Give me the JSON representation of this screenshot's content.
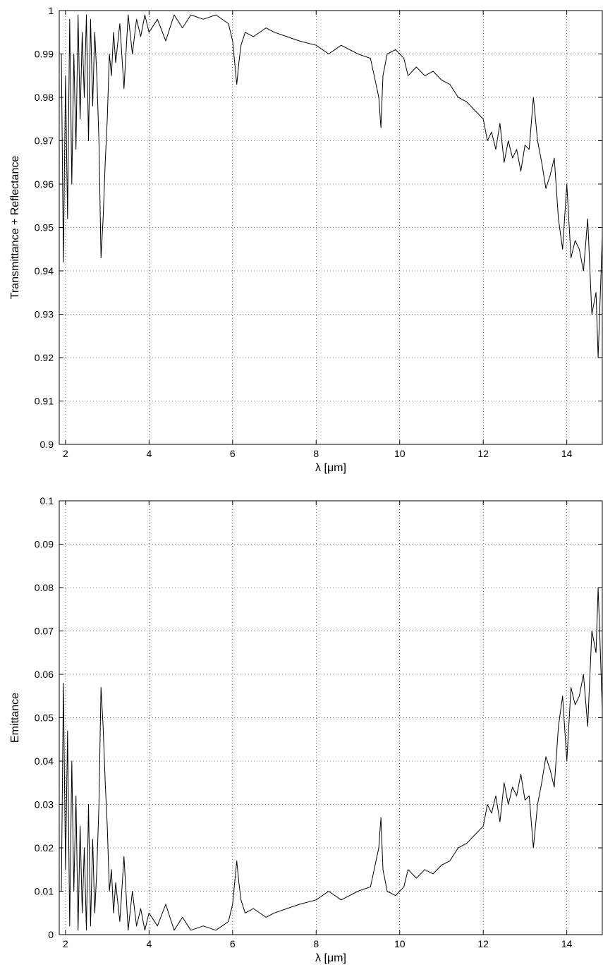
{
  "chart_data": [
    {
      "type": "line",
      "title": "",
      "xlabel": "λ [μm]",
      "ylabel": "Transmittance + Reflectance",
      "xlim": [
        1.85,
        14.85
      ],
      "ylim": [
        0.9,
        1.0
      ],
      "xticks": [
        2,
        4,
        6,
        8,
        10,
        12,
        14
      ],
      "yticks": [
        0.9,
        0.91,
        0.92,
        0.93,
        0.94,
        0.95,
        0.96,
        0.97,
        0.98,
        0.99,
        1.0
      ],
      "xtick_labels": [
        "2",
        "4",
        "6",
        "8",
        "10",
        "12",
        "14"
      ],
      "ytick_labels": [
        "0.9",
        "0.91",
        "0.92",
        "0.93",
        "0.94",
        "0.95",
        "0.96",
        "0.97",
        "0.98",
        "0.99",
        "1"
      ],
      "grid": true,
      "series": [
        {
          "x": [
            1.9,
            1.95,
            2.0,
            2.05,
            2.1,
            2.15,
            2.2,
            2.25,
            2.3,
            2.35,
            2.4,
            2.45,
            2.5,
            2.55,
            2.6,
            2.65,
            2.7,
            2.75,
            2.8,
            2.85,
            2.9,
            2.95,
            3.0,
            3.05,
            3.1,
            3.15,
            3.2,
            3.3,
            3.4,
            3.5,
            3.6,
            3.7,
            3.8,
            3.9,
            4.0,
            4.2,
            4.4,
            4.6,
            4.8,
            5.0,
            5.3,
            5.6,
            5.9,
            6.0,
            6.1,
            6.15,
            6.2,
            6.3,
            6.5,
            6.8,
            7.0,
            7.3,
            7.6,
            8.0,
            8.3,
            8.6,
            9.0,
            9.3,
            9.5,
            9.55,
            9.6,
            9.7,
            9.9,
            10.0,
            10.1,
            10.2,
            10.4,
            10.6,
            10.8,
            11.0,
            11.2,
            11.4,
            11.6,
            11.8,
            12.0,
            12.1,
            12.2,
            12.3,
            12.4,
            12.5,
            12.6,
            12.7,
            12.8,
            12.9,
            13.0,
            13.1,
            13.2,
            13.3,
            13.4,
            13.5,
            13.6,
            13.7,
            13.8,
            13.9,
            14.0,
            14.1,
            14.2,
            14.3,
            14.4,
            14.5,
            14.6,
            14.7,
            14.75,
            14.85
          ],
          "y": [
            0.99,
            0.942,
            0.985,
            0.952,
            0.998,
            0.96,
            0.99,
            0.968,
            0.999,
            0.975,
            0.995,
            0.98,
            0.999,
            0.97,
            0.998,
            0.978,
            0.995,
            0.985,
            0.97,
            0.943,
            0.952,
            0.965,
            0.975,
            0.99,
            0.985,
            0.995,
            0.988,
            0.997,
            0.982,
            0.999,
            0.99,
            0.998,
            0.994,
            0.999,
            0.995,
            0.998,
            0.993,
            0.999,
            0.996,
            0.999,
            0.998,
            0.999,
            0.997,
            0.993,
            0.983,
            0.988,
            0.992,
            0.995,
            0.994,
            0.996,
            0.995,
            0.994,
            0.993,
            0.992,
            0.99,
            0.992,
            0.99,
            0.989,
            0.98,
            0.973,
            0.985,
            0.99,
            0.991,
            0.99,
            0.989,
            0.985,
            0.987,
            0.985,
            0.986,
            0.984,
            0.983,
            0.98,
            0.979,
            0.977,
            0.975,
            0.97,
            0.972,
            0.968,
            0.974,
            0.965,
            0.97,
            0.966,
            0.968,
            0.963,
            0.969,
            0.968,
            0.98,
            0.97,
            0.965,
            0.959,
            0.962,
            0.966,
            0.952,
            0.945,
            0.96,
            0.943,
            0.947,
            0.945,
            0.94,
            0.952,
            0.93,
            0.935,
            0.92,
            0.948
          ]
        }
      ]
    },
    {
      "type": "line",
      "title": "",
      "xlabel": "λ [μm]",
      "ylabel": "Emittance",
      "xlim": [
        1.85,
        14.85
      ],
      "ylim": [
        0,
        0.1
      ],
      "xticks": [
        2,
        4,
        6,
        8,
        10,
        12,
        14
      ],
      "yticks": [
        0,
        0.01,
        0.02,
        0.03,
        0.04,
        0.05,
        0.06,
        0.07,
        0.08,
        0.09,
        0.1
      ],
      "xtick_labels": [
        "2",
        "4",
        "6",
        "8",
        "10",
        "12",
        "14"
      ],
      "ytick_labels": [
        "0",
        "0.01",
        "0.02",
        "0.03",
        "0.04",
        "0.05",
        "0.06",
        "0.07",
        "0.08",
        "0.09",
        "0.1"
      ],
      "grid": true,
      "series": [
        {
          "x": [
            1.9,
            1.95,
            2.0,
            2.05,
            2.1,
            2.15,
            2.2,
            2.25,
            2.3,
            2.35,
            2.4,
            2.45,
            2.5,
            2.55,
            2.6,
            2.65,
            2.7,
            2.75,
            2.8,
            2.85,
            2.9,
            2.95,
            3.0,
            3.05,
            3.1,
            3.15,
            3.2,
            3.3,
            3.4,
            3.5,
            3.6,
            3.7,
            3.8,
            3.9,
            4.0,
            4.2,
            4.4,
            4.6,
            4.8,
            5.0,
            5.3,
            5.6,
            5.9,
            6.0,
            6.1,
            6.15,
            6.2,
            6.3,
            6.5,
            6.8,
            7.0,
            7.3,
            7.6,
            8.0,
            8.3,
            8.6,
            9.0,
            9.3,
            9.5,
            9.55,
            9.6,
            9.7,
            9.9,
            10.0,
            10.1,
            10.2,
            10.4,
            10.6,
            10.8,
            11.0,
            11.2,
            11.4,
            11.6,
            11.8,
            12.0,
            12.1,
            12.2,
            12.3,
            12.4,
            12.5,
            12.6,
            12.7,
            12.8,
            12.9,
            13.0,
            13.1,
            13.2,
            13.3,
            13.4,
            13.5,
            13.6,
            13.7,
            13.8,
            13.9,
            14.0,
            14.1,
            14.2,
            14.3,
            14.4,
            14.5,
            14.6,
            14.7,
            14.75,
            14.85
          ],
          "y": [
            0.01,
            0.058,
            0.015,
            0.047,
            0.002,
            0.04,
            0.01,
            0.032,
            0.001,
            0.025,
            0.005,
            0.02,
            0.001,
            0.03,
            0.002,
            0.022,
            0.005,
            0.015,
            0.03,
            0.057,
            0.048,
            0.035,
            0.025,
            0.01,
            0.015,
            0.005,
            0.012,
            0.003,
            0.018,
            0.001,
            0.01,
            0.002,
            0.006,
            0.001,
            0.005,
            0.002,
            0.007,
            0.001,
            0.004,
            0.001,
            0.002,
            0.001,
            0.003,
            0.007,
            0.017,
            0.012,
            0.008,
            0.005,
            0.006,
            0.004,
            0.005,
            0.006,
            0.007,
            0.008,
            0.01,
            0.008,
            0.01,
            0.011,
            0.02,
            0.027,
            0.015,
            0.01,
            0.009,
            0.01,
            0.011,
            0.015,
            0.013,
            0.015,
            0.014,
            0.016,
            0.017,
            0.02,
            0.021,
            0.023,
            0.025,
            0.03,
            0.028,
            0.032,
            0.026,
            0.035,
            0.03,
            0.034,
            0.032,
            0.037,
            0.031,
            0.032,
            0.02,
            0.03,
            0.035,
            0.041,
            0.038,
            0.034,
            0.048,
            0.055,
            0.04,
            0.057,
            0.053,
            0.055,
            0.06,
            0.048,
            0.07,
            0.065,
            0.08,
            0.052
          ]
        }
      ]
    }
  ]
}
